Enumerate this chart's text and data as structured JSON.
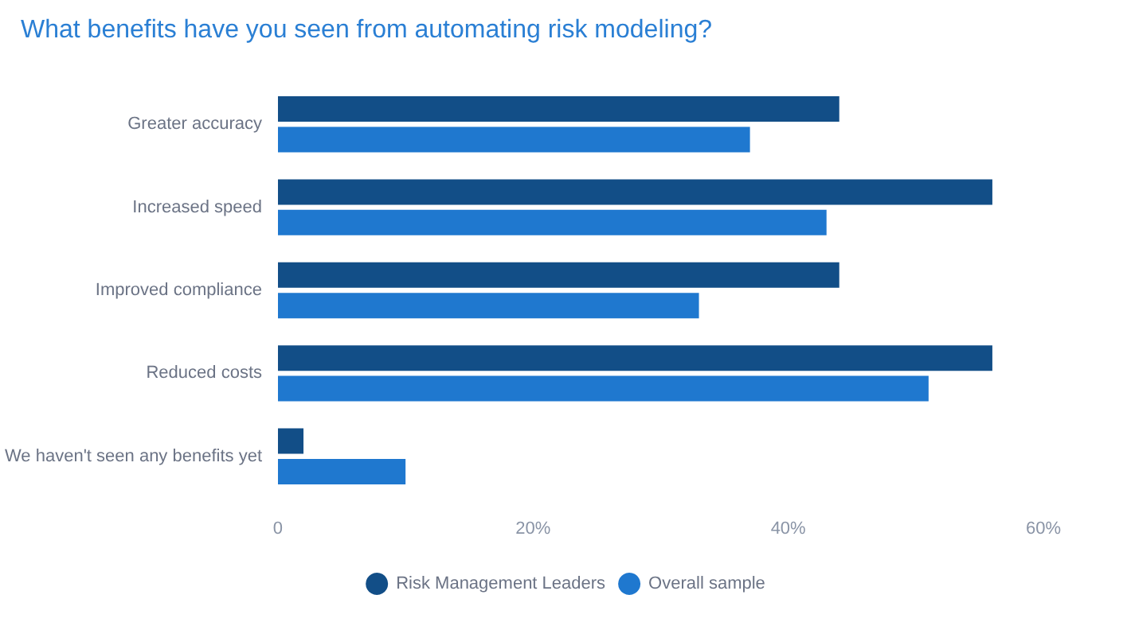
{
  "chart_data": {
    "type": "bar",
    "orientation": "horizontal",
    "title": "What benefits have you seen from automating risk modeling?",
    "categories": [
      "Greater accuracy",
      "Increased speed",
      "Improved compliance",
      "Reduced costs",
      "We haven't seen any benefits yet"
    ],
    "series": [
      {
        "name": "Risk Management Leaders",
        "color": "#124e87",
        "values": [
          44,
          56,
          44,
          56,
          2
        ]
      },
      {
        "name": "Overall sample",
        "color": "#1f78cf",
        "values": [
          37,
          43,
          33,
          51,
          10
        ]
      }
    ],
    "xlim": [
      0,
      60
    ],
    "xticks": [
      {
        "value": 0,
        "label": "0"
      },
      {
        "value": 20,
        "label": "20%"
      },
      {
        "value": 40,
        "label": "40%"
      },
      {
        "value": 60,
        "label": "60%"
      }
    ],
    "grid": false,
    "legend": "bottom"
  }
}
